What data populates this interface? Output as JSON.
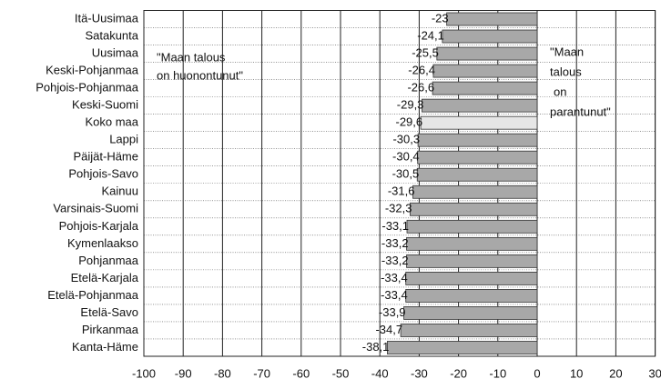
{
  "chart_data": {
    "type": "barh",
    "categories": [
      "Itä-Uusimaa",
      "Satakunta",
      "Uusimaa",
      "Keski-Pohjanmaa",
      "Pohjois-Pohjanmaa",
      "Keski-Suomi",
      "Koko maa",
      "Lappi",
      "Päijät-Häme",
      "Pohjois-Savo",
      "Kainuu",
      "Varsinais-Suomi",
      "Pohjois-Karjala",
      "Kymenlaakso",
      "Pohjanmaa",
      "Etelä-Karjala",
      "Etelä-Pohjanmaa",
      "Etelä-Savo",
      "Pirkanmaa",
      "Kanta-Häme"
    ],
    "values": [
      -23,
      -24.1,
      -25.5,
      -26.4,
      -26.6,
      -29.3,
      -29.6,
      -30.3,
      -30.4,
      -30.5,
      -31.6,
      -32.3,
      -33.1,
      -33.2,
      -33.2,
      -33.4,
      -33.4,
      -33.9,
      -34.7,
      -38.1
    ],
    "value_labels": [
      "-23",
      "-24,1",
      "-25,5",
      "-26,4",
      "-26,6",
      "-29,3",
      "-29,6",
      "-30,3",
      "-30,4",
      "-30,5",
      "-31,6",
      "-32,3",
      "-33,1",
      "-33,2",
      "-33,2",
      "-33,4",
      "-33,4",
      "-33,9",
      "-34,7",
      "-38,1"
    ],
    "colors": [
      "#a8a8a8",
      "#a8a8a8",
      "#a8a8a8",
      "#a8a8a8",
      "#a8a8a8",
      "#a8a8a8",
      "#e6e6e6",
      "#a8a8a8",
      "#a8a8a8",
      "#a8a8a8",
      "#a8a8a8",
      "#a8a8a8",
      "#a8a8a8",
      "#a8a8a8",
      "#a8a8a8",
      "#a8a8a8",
      "#a8a8a8",
      "#a8a8a8",
      "#a8a8a8",
      "#a8a8a8"
    ],
    "xlim": [
      -100,
      30
    ],
    "xticks": [
      -100,
      -90,
      -80,
      -70,
      -60,
      -50,
      -40,
      -30,
      -20,
      -10,
      0,
      10,
      20,
      30
    ],
    "grid": true,
    "annotations": [
      {
        "lines": [
          "\"Maan talous",
          "on huonontunut\""
        ]
      },
      {
        "lines": [
          "\"Maan",
          "talous",
          "on",
          "parantunut\""
        ]
      }
    ]
  }
}
